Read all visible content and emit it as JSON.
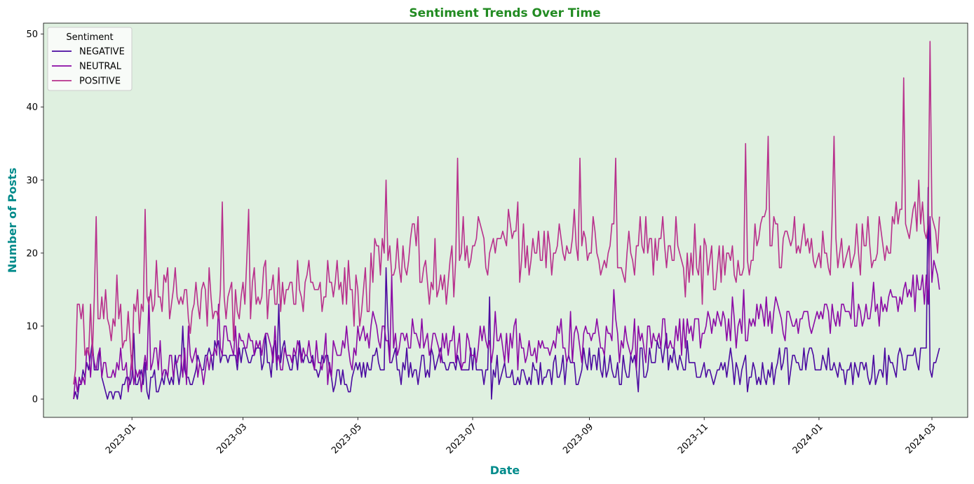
{
  "chart_data": {
    "type": "line",
    "title": "Sentiment Trends Over Time",
    "xlabel": "Date",
    "ylabel": "Number of Posts",
    "x_start": "2022-12-01",
    "x_end": "2024-03-05",
    "xlim": [
      "2022-11-15",
      "2024-03-20"
    ],
    "ylim": [
      -2.5,
      51.5
    ],
    "x_ticks": [
      "2023-01",
      "2023-03",
      "2023-05",
      "2023-07",
      "2023-09",
      "2023-11",
      "2024-01",
      "2024-03"
    ],
    "x_tick_dates": [
      "2023-01-01",
      "2023-03-01",
      "2023-05-01",
      "2023-07-01",
      "2023-09-01",
      "2023-11-01",
      "2024-01-01",
      "2024-03-01"
    ],
    "y_ticks": [
      0,
      10,
      20,
      30,
      40,
      50
    ],
    "legend_title": "Sentiment",
    "legend_position": "upper-left",
    "background_color": "#dff0e0",
    "title_color": "#228b22",
    "axis_label_color": "#008b8b",
    "series": [
      {
        "name": "NEGATIVE",
        "color": "#4b0aa0",
        "keyframes": [
          [
            "2022-12-01",
            0
          ],
          [
            "2022-12-05",
            3
          ],
          [
            "2022-12-10",
            6
          ],
          [
            "2022-12-15",
            4
          ],
          [
            "2022-12-20",
            1
          ],
          [
            "2022-12-25",
            2
          ],
          [
            "2023-01-05",
            3
          ],
          [
            "2023-01-15",
            2
          ],
          [
            "2023-02-01",
            4
          ],
          [
            "2023-02-15",
            6
          ],
          [
            "2023-03-01",
            5
          ],
          [
            "2023-03-15",
            6
          ],
          [
            "2023-04-01",
            5
          ],
          [
            "2023-04-15",
            4
          ],
          [
            "2023-05-01",
            3
          ],
          [
            "2023-05-15",
            6
          ],
          [
            "2023-06-01",
            3
          ],
          [
            "2023-06-15",
            5
          ],
          [
            "2023-07-01",
            4
          ],
          [
            "2023-07-15",
            3
          ],
          [
            "2023-08-01",
            3
          ],
          [
            "2023-08-15",
            4
          ],
          [
            "2023-09-01",
            5
          ],
          [
            "2023-09-15",
            4
          ],
          [
            "2023-10-01",
            5
          ],
          [
            "2023-10-15",
            6
          ],
          [
            "2023-11-01",
            4
          ],
          [
            "2023-11-15",
            4
          ],
          [
            "2023-12-01",
            4
          ],
          [
            "2023-12-15",
            5
          ],
          [
            "2024-01-01",
            5
          ],
          [
            "2024-01-15",
            4
          ],
          [
            "2024-02-01",
            4
          ],
          [
            "2024-02-15",
            5
          ],
          [
            "2024-02-25",
            6
          ],
          [
            "2024-03-01",
            5
          ],
          [
            "2024-03-05",
            7
          ]
        ],
        "noise": 2.5,
        "seed": 11,
        "spikes": [
          [
            "2023-01-02",
            9
          ],
          [
            "2023-01-28",
            10
          ],
          [
            "2023-03-20",
            13
          ],
          [
            "2023-05-16",
            18
          ],
          [
            "2023-07-10",
            14
          ],
          [
            "2024-02-28",
            29
          ]
        ]
      },
      {
        "name": "NEUTRAL",
        "color": "#8b0aa5",
        "keyframes": [
          [
            "2022-12-01",
            1
          ],
          [
            "2022-12-10",
            6
          ],
          [
            "2022-12-20",
            5
          ],
          [
            "2023-01-01",
            3
          ],
          [
            "2023-01-15",
            5
          ],
          [
            "2023-02-01",
            5
          ],
          [
            "2023-02-15",
            7
          ],
          [
            "2023-03-01",
            8
          ],
          [
            "2023-03-15",
            7
          ],
          [
            "2023-04-01",
            6
          ],
          [
            "2023-04-15",
            6
          ],
          [
            "2023-05-01",
            8
          ],
          [
            "2023-05-15",
            9
          ],
          [
            "2023-06-01",
            8
          ],
          [
            "2023-06-15",
            7
          ],
          [
            "2023-07-01",
            7
          ],
          [
            "2023-07-15",
            8
          ],
          [
            "2023-08-01",
            7
          ],
          [
            "2023-08-15",
            8
          ],
          [
            "2023-09-01",
            8
          ],
          [
            "2023-09-15",
            8
          ],
          [
            "2023-10-01",
            7
          ],
          [
            "2023-10-15",
            9
          ],
          [
            "2023-11-01",
            10
          ],
          [
            "2023-11-15",
            10
          ],
          [
            "2023-12-01",
            11
          ],
          [
            "2023-12-15",
            11
          ],
          [
            "2024-01-01",
            11
          ],
          [
            "2024-01-15",
            12
          ],
          [
            "2024-02-01",
            12
          ],
          [
            "2024-02-15",
            14
          ],
          [
            "2024-03-01",
            17
          ],
          [
            "2024-03-05",
            17
          ]
        ],
        "noise": 3,
        "seed": 23,
        "spikes": [
          [
            "2023-01-10",
            14
          ],
          [
            "2023-02-16",
            13
          ],
          [
            "2023-05-19",
            17
          ],
          [
            "2023-09-14",
            15
          ],
          [
            "2023-11-22",
            15
          ],
          [
            "2024-02-20",
            17
          ],
          [
            "2024-02-29",
            25
          ]
        ]
      },
      {
        "name": "POSITIVE",
        "color": "#b8308c",
        "keyframes": [
          [
            "2022-12-01",
            4
          ],
          [
            "2022-12-03",
            15
          ],
          [
            "2022-12-08",
            7
          ],
          [
            "2022-12-15",
            13
          ],
          [
            "2022-12-20",
            12
          ],
          [
            "2023-01-01",
            9
          ],
          [
            "2023-01-15",
            16
          ],
          [
            "2023-02-01",
            13
          ],
          [
            "2023-02-15",
            13
          ],
          [
            "2023-03-01",
            14
          ],
          [
            "2023-03-15",
            15
          ],
          [
            "2023-04-01",
            14
          ],
          [
            "2023-04-15",
            15
          ],
          [
            "2023-05-01",
            14
          ],
          [
            "2023-05-15",
            21
          ],
          [
            "2023-06-01",
            20
          ],
          [
            "2023-06-15",
            16
          ],
          [
            "2023-07-01",
            20
          ],
          [
            "2023-07-15",
            21
          ],
          [
            "2023-08-01",
            21
          ],
          [
            "2023-08-15",
            21
          ],
          [
            "2023-09-01",
            20
          ],
          [
            "2023-09-15",
            20
          ],
          [
            "2023-10-01",
            20
          ],
          [
            "2023-10-15",
            19
          ],
          [
            "2023-11-01",
            19
          ],
          [
            "2023-11-15",
            19
          ],
          [
            "2023-12-01",
            22
          ],
          [
            "2023-12-15",
            22
          ],
          [
            "2024-01-01",
            21
          ],
          [
            "2024-01-15",
            20
          ],
          [
            "2024-02-01",
            21
          ],
          [
            "2024-02-15",
            25
          ],
          [
            "2024-03-01",
            25
          ],
          [
            "2024-03-05",
            23
          ]
        ],
        "noise": 4.5,
        "seed": 37,
        "spikes": [
          [
            "2022-12-13",
            25
          ],
          [
            "2023-01-08",
            26
          ],
          [
            "2023-02-18",
            27
          ],
          [
            "2023-03-04",
            26
          ],
          [
            "2023-05-16",
            30
          ],
          [
            "2023-06-23",
            33
          ],
          [
            "2023-08-27",
            33
          ],
          [
            "2023-09-15",
            33
          ],
          [
            "2023-11-23",
            35
          ],
          [
            "2023-12-05",
            36
          ],
          [
            "2024-01-09",
            36
          ],
          [
            "2024-02-15",
            44
          ],
          [
            "2024-02-29",
            49
          ]
        ]
      }
    ]
  }
}
